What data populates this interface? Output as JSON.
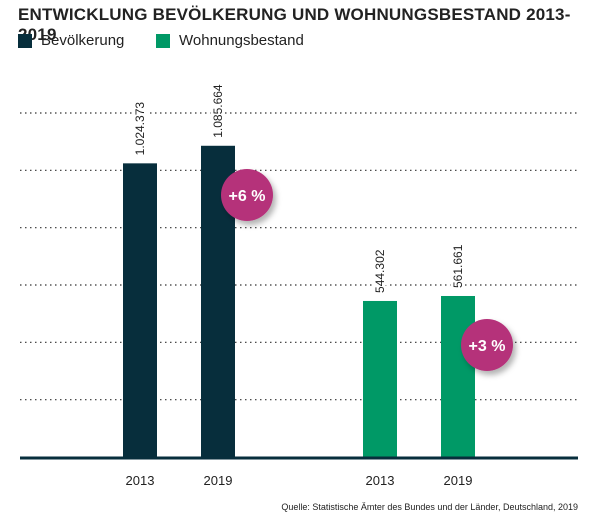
{
  "chart_data": {
    "type": "bar",
    "title": "ENTWICKLUNG BEVÖLKERUNG UND WOHNUNGSBESTAND 2013-2019",
    "ylim": [
      0,
      1200000
    ],
    "grid": true,
    "legend_placement": "top-left",
    "series": [
      {
        "name": "Bevölkerung",
        "color": "#072e3c",
        "categories": [
          "2013",
          "2019"
        ],
        "values": [
          1024373,
          1085664
        ],
        "labels": [
          "1.024.373",
          "1.085.664"
        ],
        "change": "+6 %"
      },
      {
        "name": "Wohnungsbestand",
        "color": "#009966",
        "categories": [
          "2013",
          "2019"
        ],
        "values": [
          544302,
          561661
        ],
        "labels": [
          "544.302",
          "561.661"
        ],
        "change": "+3 %"
      }
    ],
    "badge_color": "#b5307a",
    "source": "Quelle: Statistische Ämter des Bundes und der Länder, Deutschland, 2019"
  }
}
